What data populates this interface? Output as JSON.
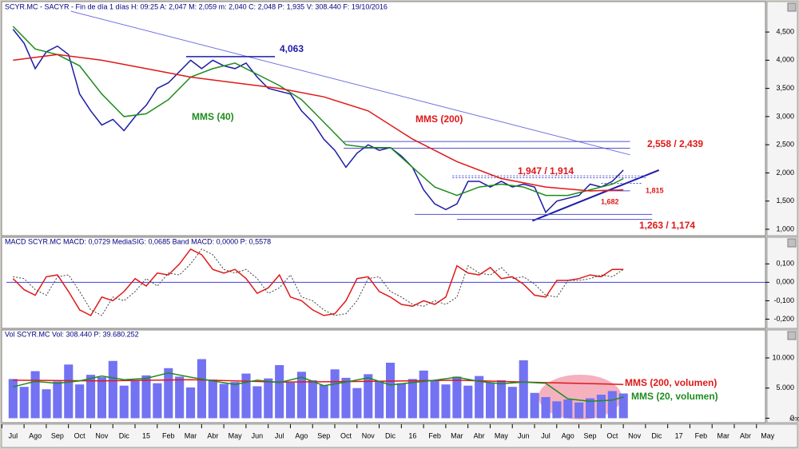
{
  "chart_data": [
    {
      "type": "line",
      "header": "SCYR.MC - SACYR - Fin de día 1 días H: 09:25 A: 2,047 M: 2,059 m: 2,040 C: 2,048 P: 1,935 V: 308.440 F: 19/10/2016",
      "xlim": [
        -0.3,
        33.9
      ],
      "ylim": [
        0.9,
        4.87
      ],
      "yticks": [
        {
          "value": 1,
          "label": "1,000"
        },
        {
          "value": 1.5,
          "label": "1,500"
        },
        {
          "value": 2,
          "label": "2,000"
        },
        {
          "value": 2.5,
          "label": "2,500"
        },
        {
          "value": 3,
          "label": "3,000"
        },
        {
          "value": 3.5,
          "label": "3,500"
        },
        {
          "value": 4,
          "label": "4,000"
        },
        {
          "value": 4.5,
          "label": "4,500"
        }
      ],
      "series": [
        {
          "color": "#1c1ca8",
          "x": [
            0,
            0.5,
            1,
            1.5,
            2,
            2.5,
            3,
            3.5,
            4,
            4.5,
            5,
            5.5,
            6,
            6.5,
            7,
            7.5,
            8,
            8.5,
            9,
            9.5,
            10,
            10.5,
            11,
            11.5,
            12,
            12.5,
            13,
            13.5,
            14,
            14.5,
            15,
            15.5,
            16,
            16.5,
            17,
            17.5,
            18,
            18.5,
            19,
            19.5,
            20,
            20.5,
            21,
            21.5,
            22,
            22.5,
            23,
            23.5,
            24,
            24.5,
            25,
            25.5,
            26,
            26.5,
            27,
            27.5
          ],
          "values": [
            4.55,
            4.3,
            3.85,
            4.15,
            4.25,
            4.1,
            3.4,
            3.1,
            2.85,
            2.95,
            2.75,
            3.0,
            3.2,
            3.5,
            3.6,
            3.8,
            4.0,
            3.85,
            4.0,
            3.9,
            3.85,
            3.95,
            3.7,
            3.5,
            3.45,
            3.4,
            3.1,
            2.9,
            2.6,
            2.4,
            2.1,
            2.35,
            2.5,
            2.4,
            2.45,
            2.3,
            2.1,
            1.7,
            1.45,
            1.35,
            1.45,
            1.85,
            1.85,
            1.75,
            1.85,
            1.75,
            1.8,
            1.75,
            1.3,
            1.5,
            1.55,
            1.6,
            1.8,
            1.75,
            1.85,
            2.05
          ]
        },
        {
          "name": "MMS (40)",
          "color": "#1e8c1e",
          "x": [
            0,
            1,
            2,
            3,
            4,
            5,
            6,
            7,
            8,
            9,
            10,
            11,
            12,
            13,
            14,
            15,
            16,
            17,
            18,
            19,
            20,
            21,
            22,
            23,
            24,
            25,
            26,
            27,
            27.5
          ],
          "values": [
            4.6,
            4.2,
            4.1,
            3.9,
            3.4,
            3.0,
            3.05,
            3.3,
            3.7,
            3.85,
            3.95,
            3.75,
            3.55,
            3.3,
            2.9,
            2.5,
            2.45,
            2.45,
            2.1,
            1.75,
            1.6,
            1.75,
            1.8,
            1.75,
            1.6,
            1.6,
            1.7,
            1.8,
            1.9
          ]
        },
        {
          "name": "MMS (200)",
          "color": "#e01818",
          "x": [
            0,
            2,
            4,
            6,
            8,
            10,
            12,
            14,
            16,
            18,
            20,
            22,
            24,
            26,
            27.5
          ],
          "values": [
            4.0,
            4.1,
            4.0,
            3.85,
            3.7,
            3.6,
            3.5,
            3.35,
            3.1,
            2.6,
            2.2,
            1.9,
            1.75,
            1.68,
            1.7
          ]
        }
      ],
      "levels": [
        {
          "label": "4,063",
          "lines": [
            {
              "value": 4.063,
              "x": [
                7.8,
                11.8
              ]
            }
          ]
        },
        {
          "label": "2,558 / 2,439",
          "lines": [
            {
              "value": 2.558,
              "x": [
                14.9,
                27.8
              ]
            },
            {
              "value": 2.439,
              "x": [
                14.9,
                27.8
              ]
            }
          ]
        },
        {
          "label": "1,947 / 1,914",
          "lines": [
            {
              "value": 1.947,
              "x": [
                19.8,
                28.5
              ]
            },
            {
              "value": 1.914,
              "x": [
                19.8,
                28.5
              ]
            }
          ]
        },
        {
          "label": "1,815",
          "lines": [
            {
              "value": 1.815,
              "x": [
                26.5,
                28.3
              ]
            }
          ]
        },
        {
          "label": "1,682",
          "lines": [
            {
              "value": 1.682,
              "x": [
                26.5,
                27.8
              ]
            }
          ]
        },
        {
          "label": "1,263 / 1,174",
          "lines": [
            {
              "value": 1.263,
              "x": [
                18.1,
                28.8
              ]
            },
            {
              "value": 1.174,
              "x": [
                20.0,
                28.8
              ]
            }
          ]
        }
      ],
      "trendlines": [
        {
          "color": "#7070e0",
          "x": [
            2.6,
            27.8
          ],
          "values": [
            4.87,
            2.32
          ]
        },
        {
          "color": "#1c1ca8",
          "x": [
            23.4,
            29.1
          ],
          "values": [
            1.15,
            2.05
          ]
        }
      ]
    },
    {
      "type": "line",
      "header": "MACD SCYR.MC MACD: 0,0729 MediaSIG: 0,0685 Band MACD: 0,0000 P: 0,5578",
      "xlim": [
        -0.3,
        33.9
      ],
      "ylim": [
        -0.25,
        0.24
      ],
      "yticks": [
        {
          "value": -0.2,
          "label": "-0,200"
        },
        {
          "value": -0.1,
          "label": "-0,100"
        },
        {
          "value": 0,
          "label": "0,000"
        },
        {
          "value": 0.1,
          "label": "0,100"
        }
      ],
      "band": 0,
      "series": [
        {
          "color": "#e01818",
          "x": [
            0,
            0.5,
            1,
            1.5,
            2,
            2.5,
            3,
            3.5,
            4,
            4.5,
            5,
            5.5,
            6,
            6.5,
            7,
            7.5,
            8,
            8.5,
            9,
            9.5,
            10,
            10.5,
            11,
            11.5,
            12,
            12.5,
            13,
            13.5,
            14,
            14.5,
            15,
            15.5,
            16,
            16.5,
            17,
            17.5,
            18,
            18.5,
            19,
            19.5,
            20,
            20.5,
            21,
            21.5,
            22,
            22.5,
            23,
            23.5,
            24,
            24.5,
            25,
            25.5,
            26,
            26.5,
            27,
            27.5
          ],
          "values": [
            0.02,
            -0.04,
            -0.07,
            0.03,
            0.04,
            -0.05,
            -0.15,
            -0.18,
            -0.08,
            -0.1,
            -0.05,
            0.02,
            -0.02,
            0.05,
            0.04,
            0.1,
            0.18,
            0.15,
            0.07,
            0.05,
            0.07,
            0.02,
            -0.06,
            -0.03,
            0.04,
            -0.08,
            -0.1,
            -0.15,
            -0.18,
            -0.17,
            -0.1,
            0.02,
            0.03,
            -0.05,
            -0.08,
            -0.12,
            -0.13,
            -0.1,
            -0.12,
            -0.08,
            0.09,
            0.05,
            0.04,
            0.08,
            0.02,
            0.03,
            -0.01,
            -0.07,
            -0.08,
            0.01,
            0.01,
            0.02,
            0.04,
            0.03,
            0.07,
            0.07
          ]
        },
        {
          "color": "#404040",
          "dashed": true,
          "x": [
            0,
            0.5,
            1,
            1.5,
            2,
            2.5,
            3,
            3.5,
            4,
            4.5,
            5,
            5.5,
            6,
            6.5,
            7,
            7.5,
            8,
            8.5,
            9,
            9.5,
            10,
            10.5,
            11,
            11.5,
            12,
            12.5,
            13,
            13.5,
            14,
            14.5,
            15,
            15.5,
            16,
            16.5,
            17,
            17.5,
            18,
            18.5,
            19,
            19.5,
            20,
            20.5,
            21,
            21.5,
            22,
            22.5,
            23,
            23.5,
            24,
            24.5,
            25,
            25.5,
            26,
            26.5,
            27,
            27.5
          ],
          "values": [
            0.03,
            0.02,
            -0.04,
            -0.07,
            0.03,
            0.04,
            -0.05,
            -0.15,
            -0.18,
            -0.08,
            -0.1,
            -0.05,
            0.02,
            -0.02,
            0.05,
            0.04,
            0.1,
            0.18,
            0.15,
            0.07,
            0.05,
            0.07,
            0.02,
            -0.06,
            -0.03,
            0.04,
            -0.08,
            -0.1,
            -0.15,
            -0.18,
            -0.17,
            -0.1,
            0.02,
            0.03,
            -0.05,
            -0.08,
            -0.12,
            -0.13,
            -0.1,
            -0.12,
            -0.08,
            0.09,
            0.05,
            0.04,
            0.08,
            0.02,
            0.03,
            -0.01,
            -0.07,
            -0.08,
            0.01,
            0.01,
            0.02,
            0.04,
            0.03,
            0.07
          ]
        }
      ]
    },
    {
      "type": "bar",
      "header": "Vol SCYR.MC Vol: 308.440 P: 39.680.252",
      "unit_label": "x1000",
      "xlim": [
        -0.3,
        33.9
      ],
      "ylim": [
        -600,
        14500
      ],
      "yticks": [
        0,
        {
          "value": 5000,
          "label": "5.000"
        },
        {
          "value": 10000,
          "label": "10.000"
        }
      ],
      "bar_color": "#7272f2",
      "x": [
        0,
        0.5,
        1,
        1.5,
        2,
        2.5,
        3,
        3.5,
        4,
        4.5,
        5,
        5.5,
        6,
        6.5,
        7,
        7.5,
        8,
        8.5,
        9,
        9.5,
        10,
        10.5,
        11,
        11.5,
        12,
        12.5,
        13,
        13.5,
        14,
        14.5,
        15,
        15.5,
        16,
        16.5,
        17,
        17.5,
        18,
        18.5,
        19,
        19.5,
        20,
        20.5,
        21,
        21.5,
        22,
        22.5,
        23,
        23.5,
        24,
        24.5,
        25,
        25.5,
        26,
        26.5,
        27,
        27.5
      ],
      "values": [
        6500,
        5200,
        7800,
        4800,
        6100,
        8900,
        5600,
        7200,
        6800,
        9500,
        5400,
        6200,
        7100,
        5800,
        8300,
        6900,
        5100,
        9800,
        6400,
        5700,
        6000,
        7400,
        5300,
        6600,
        8800,
        5900,
        7700,
        6300,
        5500,
        8100,
        6700,
        5000,
        7300,
        6100,
        9200,
        5800,
        6500,
        7900,
        6200,
        5600,
        6900,
        5400,
        7000,
        5900,
        6300,
        5200,
        9600,
        4200,
        3500,
        2800,
        3100,
        2600,
        3300,
        3900,
        4500,
        4100
      ],
      "series": [
        {
          "name": "MMS (200, volumen)",
          "color": "#e01818",
          "x": [
            0,
            4,
            8,
            12,
            16,
            20,
            24,
            27.5
          ],
          "values": [
            6300,
            6200,
            6400,
            6000,
            6100,
            6300,
            5900,
            5600
          ]
        },
        {
          "name": "MMS (20, volumen)",
          "color": "#1e8c1e",
          "x": [
            0,
            1,
            2,
            3,
            4,
            5,
            6,
            7,
            8,
            9,
            10,
            11,
            12,
            13,
            14,
            15,
            16,
            17,
            18,
            19,
            20,
            21,
            22,
            23,
            24,
            25,
            26,
            27,
            27.5
          ],
          "values": [
            5200,
            6100,
            5800,
            6200,
            7000,
            6400,
            6600,
            7500,
            6800,
            6200,
            5600,
            6300,
            5900,
            6800,
            5400,
            6000,
            6700,
            5500,
            5900,
            6300,
            6800,
            6100,
            5700,
            6000,
            5800,
            3200,
            2800,
            3000,
            3500
          ]
        }
      ],
      "xticks": [
        {
          "value": 0,
          "label": "Jul"
        },
        {
          "value": 1,
          "label": "Ago"
        },
        {
          "value": 2,
          "label": "Sep"
        },
        {
          "value": 3,
          "label": "Oct"
        },
        {
          "value": 4,
          "label": "Nov"
        },
        {
          "value": 5,
          "label": "Dic"
        },
        {
          "value": 6,
          "label": "15"
        },
        {
          "value": 7,
          "label": "Feb"
        },
        {
          "value": 8,
          "label": "Mar"
        },
        {
          "value": 9,
          "label": "Abr"
        },
        {
          "value": 10,
          "label": "May"
        },
        {
          "value": 11,
          "label": "Jun"
        },
        {
          "value": 12,
          "label": "Jul"
        },
        {
          "value": 13,
          "label": "Ago"
        },
        {
          "value": 14,
          "label": "Sep"
        },
        {
          "value": 15,
          "label": "Oct"
        },
        {
          "value": 16,
          "label": "Nov"
        },
        {
          "value": 17,
          "label": "Dic"
        },
        {
          "value": 18,
          "label": "16"
        },
        {
          "value": 19,
          "label": "Feb"
        },
        {
          "value": 20,
          "label": "Mar"
        },
        {
          "value": 21,
          "label": "Abr"
        },
        {
          "value": 22,
          "label": "May"
        },
        {
          "value": 23,
          "label": "Jun"
        },
        {
          "value": 24,
          "label": "Jul"
        },
        {
          "value": 25,
          "label": "Ago"
        },
        {
          "value": 26,
          "label": "Sep"
        },
        {
          "value": 27,
          "label": "Oct"
        },
        {
          "value": 28,
          "label": "Nov"
        },
        {
          "value": 29,
          "label": "Dic"
        },
        {
          "value": 30,
          "label": "17"
        },
        {
          "value": 31,
          "label": "Feb"
        },
        {
          "value": 32,
          "label": "Mar"
        },
        {
          "value": 33,
          "label": "Abr"
        },
        {
          "value": 34,
          "label": "May"
        }
      ]
    }
  ]
}
